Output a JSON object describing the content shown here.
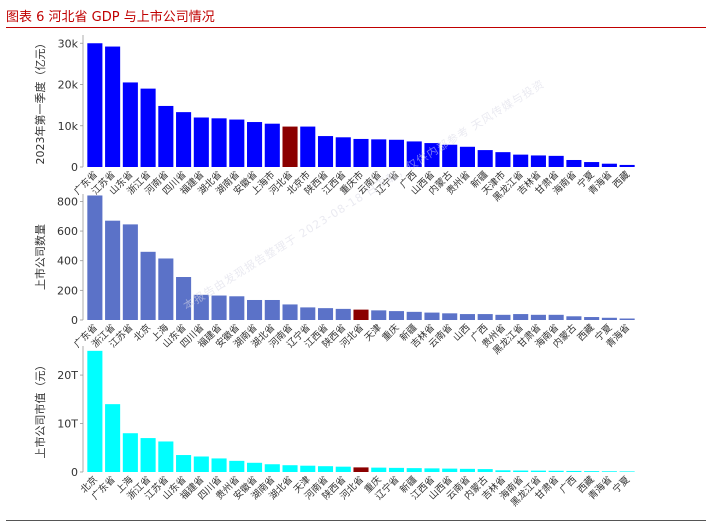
{
  "header": {
    "title": "图表 6 河北省 GDP 与上市公司情况"
  },
  "watermark": "本报告由发现报告整理于 2023-08-18 日下载，仅供内部参考 天风传媒与投资",
  "colors": {
    "title_red": "#c00000",
    "panel1_bar": "#0000ff",
    "panel2_bar": "#5b72c8",
    "panel3_bar": "#00ffff",
    "highlight": "#8b0000"
  },
  "chart_data": [
    {
      "type": "bar",
      "ylabel": "2023年第一季度（亿元）",
      "ylim": [
        0,
        32000
      ],
      "yticks": [
        0,
        10000,
        20000,
        30000
      ],
      "ytick_labels": [
        "0",
        "10k",
        "20k",
        "30k"
      ],
      "highlight": "河北省",
      "categories": [
        "广东省",
        "江苏省",
        "山东省",
        "浙江省",
        "河南省",
        "四川省",
        "福建省",
        "湖北省",
        "湖南省",
        "安徽省",
        "上海市",
        "河北省",
        "北京市",
        "陕西省",
        "江西省",
        "重庆市",
        "云南省",
        "辽宁省",
        "广西",
        "山西省",
        "内蒙古",
        "贵州省",
        "新疆",
        "天津市",
        "黑龙江省",
        "吉林省",
        "甘肃省",
        "海南省",
        "宁夏",
        "青海省",
        "西藏"
      ],
      "values": [
        30000,
        29200,
        20500,
        19000,
        14800,
        13300,
        12000,
        11800,
        11500,
        10900,
        10500,
        9800,
        9800,
        7500,
        7200,
        6800,
        6700,
        6600,
        6200,
        5800,
        5400,
        4900,
        4100,
        3600,
        3000,
        2800,
        2700,
        1700,
        1200,
        800,
        500
      ]
    },
    {
      "type": "bar",
      "ylabel": "上市公司数量",
      "ylim": [
        0,
        850
      ],
      "yticks": [
        0,
        200,
        400,
        600,
        800
      ],
      "ytick_labels": [
        "0",
        "200",
        "400",
        "600",
        "800"
      ],
      "highlight": "河北省",
      "categories": [
        "广东省",
        "浙江省",
        "江苏省",
        "北京",
        "上海",
        "山东省",
        "四川省",
        "福建省",
        "安徽省",
        "湖南省",
        "湖北省",
        "河南省",
        "辽宁省",
        "江西省",
        "陕西省",
        "河北省",
        "天津",
        "重庆",
        "新疆",
        "吉林省",
        "云南省",
        "山西",
        "广西",
        "贵州省",
        "黑龙江省",
        "甘肃省",
        "海南省",
        "内蒙古",
        "西藏",
        "宁夏",
        "青海省"
      ],
      "values": [
        840,
        670,
        645,
        460,
        415,
        290,
        170,
        165,
        160,
        135,
        135,
        105,
        85,
        80,
        75,
        70,
        65,
        60,
        55,
        50,
        45,
        40,
        40,
        35,
        40,
        35,
        35,
        25,
        20,
        15,
        10
      ]
    },
    {
      "type": "bar",
      "ylabel": "上市公司市值（元）",
      "ylim": [
        0,
        26000000000000
      ],
      "yticks": [
        0,
        10000000000000,
        20000000000000
      ],
      "ytick_labels": [
        "0",
        "10T",
        "20T"
      ],
      "highlight": "河北省",
      "categories": [
        "北京",
        "广东省",
        "上海",
        "浙江省",
        "江苏省",
        "山东省",
        "福建省",
        "四川省",
        "贵州省",
        "安徽省",
        "湖南省",
        "湖北省",
        "天津",
        "河南省",
        "陕西省",
        "河北省",
        "重庆",
        "辽宁省",
        "新疆",
        "江西省",
        "山西省",
        "云南省",
        "内蒙古",
        "吉林省",
        "海南省",
        "黑龙江省",
        "甘肃省",
        "广西",
        "西藏",
        "青海省",
        "宁夏"
      ],
      "values": [
        25000000000000,
        14000000000000,
        8000000000000,
        7000000000000,
        6300000000000,
        3500000000000,
        3200000000000,
        2800000000000,
        2300000000000,
        1900000000000,
        1600000000000,
        1400000000000,
        1300000000000,
        1200000000000,
        1100000000000,
        950000000000,
        900000000000,
        850000000000,
        800000000000,
        750000000000,
        700000000000,
        650000000000,
        600000000000,
        350000000000,
        300000000000,
        280000000000,
        250000000000,
        220000000000,
        180000000000,
        150000000000,
        120000000000
      ]
    }
  ]
}
